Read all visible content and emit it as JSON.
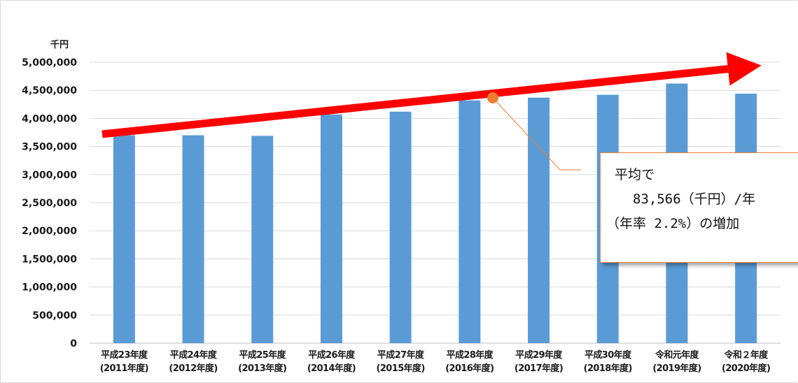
{
  "chart_data": {
    "type": "bar",
    "ylabel": "千円",
    "ylim": [
      0,
      5000000
    ],
    "yticks": [
      "0",
      "500,000",
      "1,000,000",
      "1,500,000",
      "2,000,000",
      "2,500,000",
      "3,000,000",
      "3,500,000",
      "4,000,000",
      "4,500,000",
      "5,000,000"
    ],
    "ytick_values": [
      0,
      500000,
      1000000,
      1500000,
      2000000,
      2500000,
      3000000,
      3500000,
      4000000,
      4500000,
      5000000
    ],
    "grid": true,
    "categories": [
      {
        "line1": "平成23年度",
        "line2": "(2011年度)"
      },
      {
        "line1": "平成24年度",
        "line2": "(2012年度)"
      },
      {
        "line1": "平成25年度",
        "line2": "(2013年度)"
      },
      {
        "line1": "平成26年度",
        "line2": "(2014年度)"
      },
      {
        "line1": "平成27年度",
        "line2": "(2015年度)"
      },
      {
        "line1": "平成28年度",
        "line2": "(2016年度)"
      },
      {
        "line1": "平成29年度",
        "line2": "(2017年度)"
      },
      {
        "line1": "平成30年度",
        "line2": "(2018年度)"
      },
      {
        "line1": "令和元年度",
        "line2": "(2019年度)"
      },
      {
        "line1": "令和２年度",
        "line2": "(2020年度)"
      }
    ],
    "values": [
      3700000,
      3700000,
      3690000,
      4070000,
      4120000,
      4320000,
      4370000,
      4420000,
      4620000,
      4440000
    ],
    "trend": {
      "start": 3720000,
      "end": 4880000,
      "color": "#ff0000"
    },
    "annotation": {
      "line1": "平均で",
      "line2": "83,566（千円）/年",
      "line3": "（年率 2.2%）の増加"
    },
    "colors": {
      "bar": "#5b9bd5",
      "grid": "#d9d9d9",
      "callout_border": "#ed7d31",
      "marker": "#ed7d31"
    }
  }
}
